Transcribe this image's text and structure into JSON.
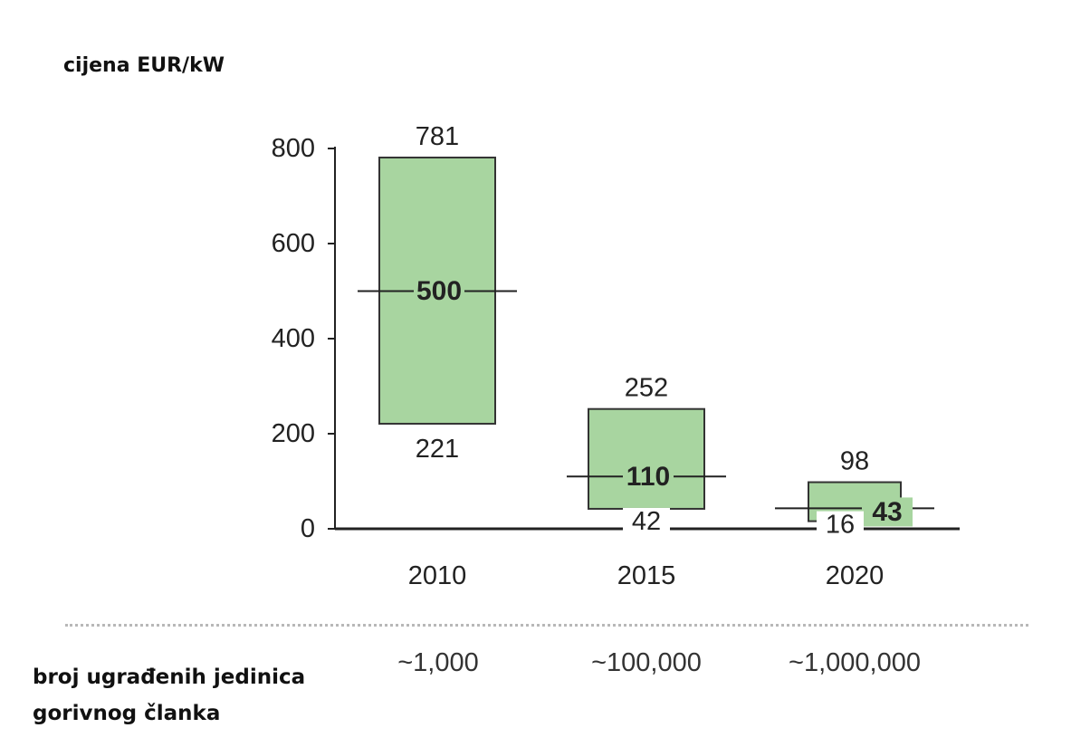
{
  "chart_data": {
    "type": "bar",
    "title": "",
    "ylabel": "cijena EUR/kW",
    "xlabel": "",
    "ylim": [
      0,
      800
    ],
    "yticks": [
      0,
      200,
      400,
      600,
      800
    ],
    "grid": false,
    "categories": [
      "2010",
      "2015",
      "2020"
    ],
    "low": [
      221,
      42,
      16
    ],
    "high": [
      781,
      252,
      98
    ],
    "mid": [
      500,
      110,
      43
    ],
    "bar_color": "#a8d5a0",
    "bar_edge_color": "#333333"
  },
  "units": {
    "label_line1": "broj ugrađenih jedinica",
    "label_line2": "gorivnog članka",
    "values": [
      "~1,000",
      "~100,000",
      "~1,000,000"
    ]
  }
}
